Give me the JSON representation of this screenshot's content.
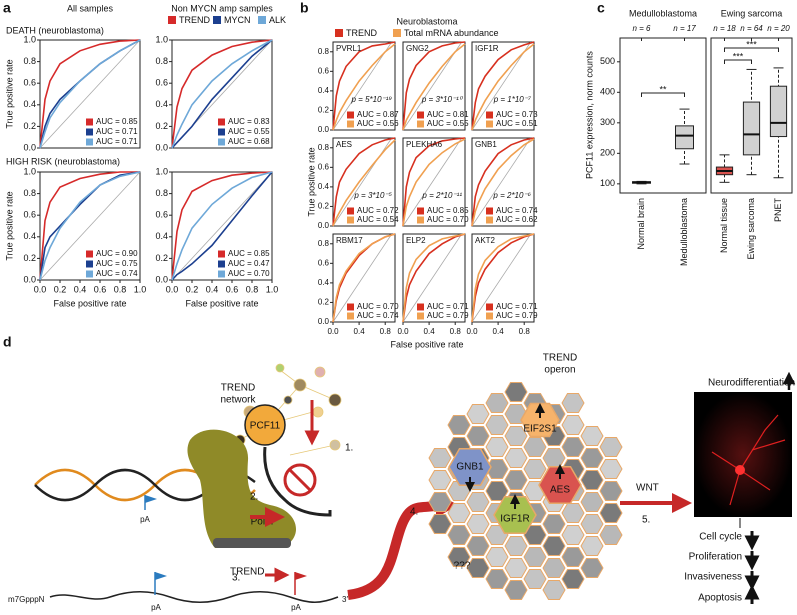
{
  "panels": {
    "a": {
      "label": "a",
      "columns": [
        "All samples",
        "Non MYCN amp samples"
      ],
      "rows": [
        "DEATH (neuroblastoma)",
        "HIGH RISK (neuroblastoma)"
      ],
      "legend": [
        {
          "name": "TREND",
          "color": "#d62a2a"
        },
        {
          "name": "MYCN",
          "color": "#1c3f8f"
        },
        {
          "name": "ALK",
          "color": "#6ea8d8"
        }
      ]
    },
    "b": {
      "label": "b",
      "title": "Neuroblastoma",
      "xlabel": "False positive rate",
      "ylabel": "True positive rate",
      "legend": [
        {
          "name": "TREND",
          "color": "#d7301f"
        },
        {
          "name": "Total mRNA abundance",
          "color": "#f0a050"
        }
      ]
    },
    "c": {
      "label": "c",
      "ylabel": "PCF11 expression, norm counts"
    }
  },
  "chart_data": [
    {
      "type": "roc",
      "x": [
        0,
        0.05,
        0.1,
        0.2,
        0.4,
        0.6,
        0.8,
        1
      ],
      "xlim": [
        0,
        1
      ],
      "ylim": [
        0,
        1
      ],
      "yticks": [
        {
          "value": 0,
          "label": "0.0"
        },
        0.2,
        0.4,
        0.6,
        0.8,
        {
          "value": 1,
          "label": "1.0"
        }
      ],
      "ylabel": "True positive rate",
      "series": [
        {
          "color": "#d62a2a",
          "values": [
            0,
            0.45,
            0.62,
            0.78,
            0.9,
            0.96,
            0.99,
            1
          ],
          "auc_label": "AUC = 0.85"
        },
        {
          "color": "#1c3f8f",
          "values": [
            0,
            0.2,
            0.32,
            0.45,
            0.62,
            0.78,
            0.9,
            1
          ],
          "auc_label": "AUC = 0.71"
        },
        {
          "color": "#6ea8d8",
          "values": [
            0,
            0.15,
            0.28,
            0.42,
            0.62,
            0.78,
            0.9,
            1
          ],
          "auc_label": "AUC = 0.71"
        }
      ]
    },
    {
      "type": "roc",
      "x": [
        0,
        0.05,
        0.1,
        0.2,
        0.4,
        0.6,
        0.8,
        1
      ],
      "xlim": [
        0,
        1
      ],
      "ylim": [
        0,
        1
      ],
      "yticks": [
        {
          "value": 0,
          "label": "0.0"
        },
        0.2,
        0.4,
        0.6,
        0.8,
        {
          "value": 1,
          "label": "1.0"
        }
      ],
      "series": [
        {
          "color": "#d62a2a",
          "values": [
            0,
            0.38,
            0.55,
            0.72,
            0.86,
            0.94,
            0.98,
            1
          ],
          "auc_label": "AUC = 0.83"
        },
        {
          "color": "#1c3f8f",
          "values": [
            0,
            0.05,
            0.1,
            0.2,
            0.45,
            0.65,
            0.85,
            1
          ],
          "auc_label": "AUC = 0.55"
        },
        {
          "color": "#6ea8d8",
          "values": [
            0,
            0.12,
            0.22,
            0.4,
            0.62,
            0.78,
            0.9,
            1
          ],
          "auc_label": "AUC = 0.68"
        }
      ]
    },
    {
      "type": "roc",
      "x": [
        0,
        0.05,
        0.1,
        0.2,
        0.4,
        0.6,
        0.8,
        1
      ],
      "xlim": [
        0,
        1
      ],
      "ylim": [
        0,
        1
      ],
      "xticks": [
        {
          "value": 0,
          "label": "0.0"
        },
        0.2,
        0.4,
        0.6,
        0.8,
        {
          "value": 1,
          "label": "1.0"
        }
      ],
      "yticks": [
        {
          "value": 0,
          "label": "0.0"
        },
        0.2,
        0.4,
        0.6,
        0.8,
        {
          "value": 1,
          "label": "1.0"
        }
      ],
      "xlabel": "False positive rate",
      "ylabel": "True positive rate",
      "series": [
        {
          "color": "#d62a2a",
          "values": [
            0,
            0.55,
            0.72,
            0.86,
            0.94,
            0.98,
            1,
            1
          ],
          "auc_label": "AUC = 0.90"
        },
        {
          "color": "#1c3f8f",
          "values": [
            0,
            0.3,
            0.4,
            0.5,
            0.7,
            0.88,
            0.97,
            1
          ],
          "auc_label": "AUC = 0.75"
        },
        {
          "color": "#6ea8d8",
          "values": [
            0,
            0.18,
            0.3,
            0.48,
            0.72,
            0.88,
            0.96,
            1
          ],
          "auc_label": "AUC = 0.74"
        }
      ]
    },
    {
      "type": "roc",
      "x": [
        0,
        0.05,
        0.1,
        0.2,
        0.4,
        0.6,
        0.8,
        1
      ],
      "xlim": [
        0,
        1
      ],
      "ylim": [
        0,
        1
      ],
      "xticks": [
        {
          "value": 0,
          "label": "0.0"
        },
        0.2,
        0.4,
        0.6,
        0.8,
        {
          "value": 1,
          "label": "1.0"
        }
      ],
      "yticks": [
        {
          "value": 0,
          "label": "0.0"
        },
        0.2,
        0.4,
        0.6,
        0.8,
        {
          "value": 1,
          "label": "1.0"
        }
      ],
      "xlabel": "False positive rate",
      "series": [
        {
          "color": "#d62a2a",
          "values": [
            0,
            0.45,
            0.65,
            0.82,
            0.92,
            0.97,
            0.99,
            1
          ],
          "auc_label": "AUC = 0.85"
        },
        {
          "color": "#1c3f8f",
          "values": [
            0,
            0.05,
            0.08,
            0.15,
            0.32,
            0.55,
            0.78,
            1
          ],
          "auc_label": "AUC = 0.47"
        },
        {
          "color": "#6ea8d8",
          "values": [
            0,
            0.15,
            0.28,
            0.48,
            0.7,
            0.85,
            0.95,
            1
          ],
          "auc_label": "AUC = 0.70"
        }
      ]
    },
    {
      "type": "roc",
      "title": "PVRL1",
      "pvalue": "p = 5*10⁻¹⁹",
      "x": [
        0,
        0.05,
        0.1,
        0.2,
        0.4,
        0.6,
        0.8,
        0.95
      ],
      "xlim": [
        0,
        0.95
      ],
      "ylim": [
        0,
        0.9
      ],
      "yticks": [
        {
          "value": 0,
          "label": "0.0"
        },
        0.2,
        0.4,
        0.6,
        0.8
      ],
      "series": [
        {
          "color": "#d7301f",
          "values": [
            0,
            0.35,
            0.5,
            0.65,
            0.8,
            0.86,
            0.88,
            0.9
          ],
          "auc_label": "AUC = 0.87"
        },
        {
          "color": "#f0a050",
          "values": [
            0,
            0.1,
            0.18,
            0.3,
            0.5,
            0.66,
            0.8,
            0.88
          ],
          "auc_label": "AUC = 0.56"
        }
      ]
    },
    {
      "type": "roc",
      "title": "GNG2",
      "pvalue": "p = 3*10⁻¹⁰",
      "x": [
        0,
        0.05,
        0.1,
        0.2,
        0.4,
        0.6,
        0.8,
        0.95
      ],
      "xlim": [
        0,
        0.95
      ],
      "ylim": [
        0,
        0.9
      ],
      "series": [
        {
          "color": "#d7301f",
          "values": [
            0,
            0.38,
            0.52,
            0.66,
            0.8,
            0.86,
            0.89,
            0.9
          ],
          "auc_label": "AUC = 0.81"
        },
        {
          "color": "#f0a050",
          "values": [
            0,
            0.1,
            0.16,
            0.28,
            0.48,
            0.65,
            0.8,
            0.88
          ],
          "auc_label": "AUC = 0.55"
        }
      ]
    },
    {
      "type": "roc",
      "title": "IGF1R",
      "pvalue": "p = 1*10⁻⁷",
      "x": [
        0,
        0.05,
        0.1,
        0.2,
        0.4,
        0.6,
        0.8,
        0.95
      ],
      "xlim": [
        0,
        0.95
      ],
      "ylim": [
        0,
        0.9
      ],
      "series": [
        {
          "color": "#d7301f",
          "values": [
            0,
            0.28,
            0.42,
            0.55,
            0.72,
            0.82,
            0.87,
            0.9
          ],
          "auc_label": "AUC = 0.73"
        },
        {
          "color": "#f0a050",
          "values": [
            0,
            0.1,
            0.17,
            0.3,
            0.5,
            0.66,
            0.8,
            0.88
          ],
          "auc_label": "AUC = 0.51"
        }
      ]
    },
    {
      "type": "roc",
      "title": "AES",
      "pvalue": "p = 3*10⁻⁵",
      "x": [
        0,
        0.05,
        0.1,
        0.2,
        0.4,
        0.6,
        0.8,
        0.95
      ],
      "xlim": [
        0,
        0.95
      ],
      "ylim": [
        0,
        0.9
      ],
      "yticks": [
        {
          "value": 0,
          "label": "0.0"
        },
        0.2,
        0.4,
        0.6,
        0.8
      ],
      "series": [
        {
          "color": "#d7301f",
          "values": [
            0,
            0.3,
            0.45,
            0.58,
            0.74,
            0.83,
            0.88,
            0.9
          ],
          "auc_label": "AUC = 0.72"
        },
        {
          "color": "#f0a050",
          "values": [
            0,
            0.08,
            0.14,
            0.26,
            0.45,
            0.62,
            0.78,
            0.88
          ],
          "auc_label": "AUC = 0.54"
        }
      ]
    },
    {
      "type": "roc",
      "title": "PLEKHA6",
      "pvalue": "p = 2*10⁻¹¹",
      "x": [
        0,
        0.05,
        0.1,
        0.2,
        0.4,
        0.6,
        0.8,
        0.95
      ],
      "xlim": [
        0,
        0.95
      ],
      "ylim": [
        0,
        0.9
      ],
      "series": [
        {
          "color": "#d7301f",
          "values": [
            0,
            0.4,
            0.55,
            0.7,
            0.82,
            0.87,
            0.89,
            0.9
          ],
          "auc_label": "AUC = 0.85"
        },
        {
          "color": "#f0a050",
          "values": [
            0,
            0.2,
            0.3,
            0.45,
            0.63,
            0.75,
            0.84,
            0.89
          ],
          "auc_label": "AUC = 0.70"
        }
      ]
    },
    {
      "type": "roc",
      "title": "GNB1",
      "pvalue": "p = 2*10⁻⁶",
      "x": [
        0,
        0.05,
        0.1,
        0.2,
        0.4,
        0.6,
        0.8,
        0.95
      ],
      "xlim": [
        0,
        0.95
      ],
      "ylim": [
        0,
        0.9
      ],
      "series": [
        {
          "color": "#d7301f",
          "values": [
            0,
            0.3,
            0.42,
            0.56,
            0.74,
            0.83,
            0.88,
            0.9
          ],
          "auc_label": "AUC = 0.74"
        },
        {
          "color": "#f0a050",
          "values": [
            0,
            0.15,
            0.24,
            0.38,
            0.58,
            0.72,
            0.83,
            0.89
          ],
          "auc_label": "AUC = 0.62"
        }
      ]
    },
    {
      "type": "roc",
      "title": "RBM17",
      "x": [
        0,
        0.05,
        0.1,
        0.2,
        0.4,
        0.6,
        0.8,
        0.95
      ],
      "xlim": [
        0,
        0.95
      ],
      "ylim": [
        0,
        0.9
      ],
      "xticks": [
        {
          "value": 0,
          "label": "0.0"
        },
        0.4,
        0.8
      ],
      "yticks": [
        {
          "value": 0,
          "label": "0.0"
        },
        0.2,
        0.4,
        0.6,
        0.8
      ],
      "series": [
        {
          "color": "#d7301f",
          "values": [
            0,
            0.22,
            0.35,
            0.5,
            0.68,
            0.8,
            0.87,
            0.9
          ],
          "auc_label": "AUC = 0.70"
        },
        {
          "color": "#f0a050",
          "values": [
            0,
            0.25,
            0.38,
            0.52,
            0.7,
            0.8,
            0.87,
            0.9
          ],
          "auc_label": "AUC = 0.74"
        }
      ]
    },
    {
      "type": "roc",
      "title": "ELP2",
      "x": [
        0,
        0.05,
        0.1,
        0.2,
        0.4,
        0.6,
        0.8,
        0.95
      ],
      "xlim": [
        0,
        0.95
      ],
      "ylim": [
        0,
        0.9
      ],
      "xticks": [
        {
          "value": 0,
          "label": "0.0"
        },
        0.4,
        0.8
      ],
      "series": [
        {
          "color": "#d7301f",
          "values": [
            0,
            0.25,
            0.38,
            0.52,
            0.7,
            0.8,
            0.87,
            0.9
          ],
          "auc_label": "AUC = 0.71"
        },
        {
          "color": "#f0a050",
          "values": [
            0,
            0.35,
            0.5,
            0.64,
            0.78,
            0.85,
            0.88,
            0.9
          ],
          "auc_label": "AUC = 0.79"
        }
      ]
    },
    {
      "type": "roc",
      "title": "AKT2",
      "x": [
        0,
        0.05,
        0.1,
        0.2,
        0.4,
        0.6,
        0.8,
        0.95
      ],
      "xlim": [
        0,
        0.95
      ],
      "ylim": [
        0,
        0.9
      ],
      "xticks": [
        {
          "value": 0,
          "label": "0.0"
        },
        0.4,
        0.8
      ],
      "series": [
        {
          "color": "#d7301f",
          "values": [
            0,
            0.26,
            0.4,
            0.54,
            0.71,
            0.81,
            0.87,
            0.9
          ],
          "auc_label": "AUC = 0.71"
        },
        {
          "color": "#f0a050",
          "values": [
            0,
            0.34,
            0.49,
            0.63,
            0.77,
            0.85,
            0.88,
            0.9
          ],
          "auc_label": "AUC = 0.79"
        }
      ]
    },
    {
      "type": "box",
      "title": "Medulloblastoma",
      "categories": [
        "Normal brain",
        "Medulloblastoma"
      ],
      "n_labels": [
        "n = 6",
        "n = 17"
      ],
      "ylim": [
        70,
        578
      ],
      "yticks": [
        100,
        200,
        300,
        400,
        500
      ],
      "colors": [
        "#d0d0d0",
        "#d0d0d0"
      ],
      "boxes": [
        {
          "min": 100,
          "q1": 102,
          "median": 105,
          "q3": 107,
          "max": 108
        },
        {
          "min": 165,
          "q1": 215,
          "median": 258,
          "q3": 290,
          "max": 345
        }
      ],
      "annotations": [
        "**"
      ]
    },
    {
      "type": "box",
      "title": "Ewing sarcoma",
      "categories": [
        "Normal tissue",
        "Ewing sarcoma",
        "PNET"
      ],
      "n_labels": [
        "n = 18",
        "n = 64",
        "n = 20"
      ],
      "ylim": [
        70,
        578
      ],
      "colors": [
        "#d9534f",
        "#d0d0d0",
        "#d0d0d0"
      ],
      "boxes": [
        {
          "min": 105,
          "q1": 130,
          "median": 142,
          "q3": 155,
          "max": 195
        },
        {
          "min": 130,
          "q1": 195,
          "median": 262,
          "q3": 368,
          "max": 475
        },
        {
          "min": 120,
          "q1": 255,
          "median": 300,
          "q3": 420,
          "max": 480
        }
      ],
      "annotations": [
        "***",
        "***"
      ]
    }
  ],
  "diagram": {
    "label": "d",
    "network": [
      "TREND",
      "network"
    ],
    "pcf11": "PCF11",
    "steps": [
      "1.",
      "2.",
      "3.",
      "4.",
      "5."
    ],
    "pol2": "Pol II",
    "pa": [
      "pA",
      "pA",
      "pA"
    ],
    "cap": "m7GpppN",
    "trend": "TREND",
    "end3": "3′",
    "operon": [
      "TREND",
      "operon"
    ],
    "genes": [
      "EIF2S1",
      "GNB1",
      "AES",
      "IGF1R",
      "???"
    ],
    "wnt": "WNT",
    "neuro": "Neurodifferentiation",
    "effects": [
      "Cell cycle",
      "Proliferation",
      "Invasiveness",
      "Apoptosis"
    ]
  }
}
